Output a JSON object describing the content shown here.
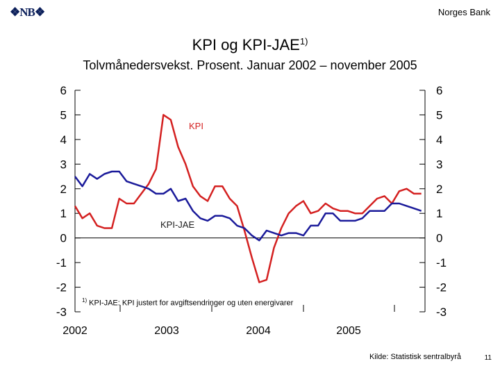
{
  "header": {
    "logo_text": "NB",
    "bank_name": "Norges Bank"
  },
  "title": "KPI og KPI-JAE",
  "title_sup": "1)",
  "subtitle": "Tolvmånedersvekst. Prosent. Januar 2002 – november 2005",
  "footnote": {
    "marker": "1)",
    "text": " KPI-JAE: KPI justert for avgiftsendringer og uten energivarer"
  },
  "source": "Kilde: Statistisk sentralbyrå",
  "page_number": "11",
  "chart_data": {
    "type": "line",
    "title": "KPI og KPI-JAE",
    "subtitle": "Tolvmånedersvekst. Prosent. Januar 2002 – november 2005",
    "ylim": [
      -3,
      6
    ],
    "yticks": [
      6,
      5,
      4,
      3,
      2,
      1,
      0,
      -1,
      -2,
      -3
    ],
    "xticks": [
      "2002",
      "2003",
      "2004",
      "2005"
    ],
    "x_start": "2002-01",
    "x_end": "2005-11",
    "grid": false,
    "zero_line": true,
    "series": [
      {
        "name": "KPI",
        "color": "#d42020",
        "values": [
          1.3,
          0.8,
          1.0,
          0.5,
          0.4,
          0.4,
          1.6,
          1.4,
          1.4,
          1.8,
          2.2,
          2.8,
          5.0,
          4.8,
          3.7,
          3.0,
          2.1,
          1.7,
          1.5,
          2.1,
          2.1,
          1.6,
          1.3,
          0.3,
          -0.8,
          -1.8,
          -1.7,
          -0.4,
          0.4,
          1.0,
          1.3,
          1.5,
          1.0,
          1.1,
          1.4,
          1.2,
          1.1,
          1.1,
          1.0,
          1.0,
          1.3,
          1.6,
          1.7,
          1.4,
          1.9,
          2.0,
          1.8,
          1.8
        ]
      },
      {
        "name": "KPI-JAE",
        "color": "#1a1a9a",
        "values": [
          2.5,
          2.1,
          2.6,
          2.4,
          2.6,
          2.7,
          2.7,
          2.3,
          2.2,
          2.1,
          2.0,
          1.8,
          1.8,
          2.0,
          1.5,
          1.6,
          1.1,
          0.8,
          0.7,
          0.9,
          0.9,
          0.8,
          0.5,
          0.4,
          0.1,
          -0.1,
          0.3,
          0.2,
          0.1,
          0.2,
          0.2,
          0.1,
          0.5,
          0.5,
          1.0,
          1.0,
          0.7,
          0.7,
          0.7,
          0.8,
          1.1,
          1.1,
          1.1,
          1.4,
          1.4,
          1.3,
          1.2,
          1.1
        ]
      }
    ]
  }
}
